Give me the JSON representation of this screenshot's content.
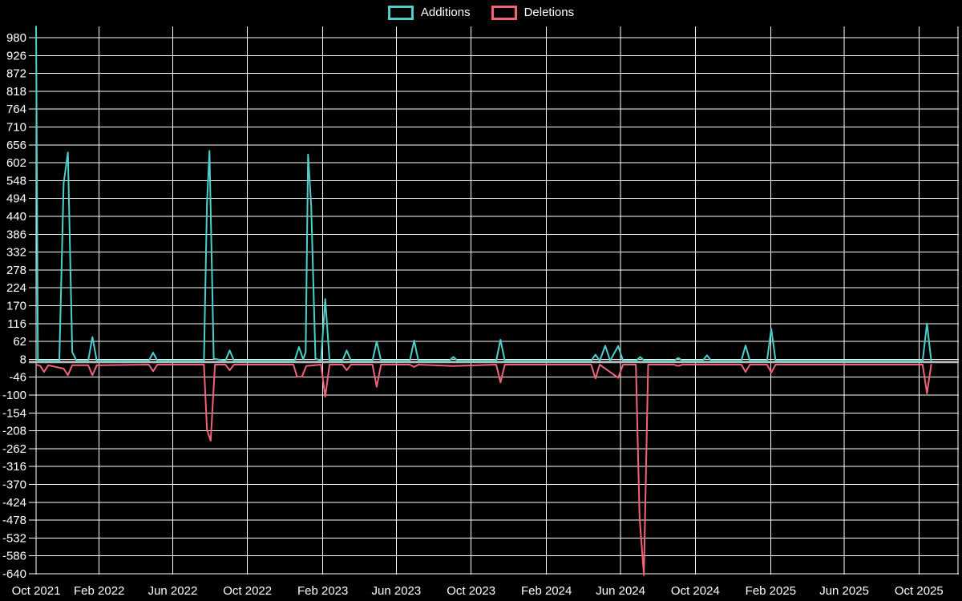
{
  "legend": {
    "items": [
      {
        "label": "Additions",
        "color": "#4dd0cb"
      },
      {
        "label": "Deletions",
        "color": "#f06378"
      }
    ]
  },
  "chart_data": {
    "type": "line",
    "title": "",
    "legend_position": "top",
    "grid": true,
    "background": "#000000",
    "gridline_color": "#ffffff",
    "zero_line_color": "#b0b8b8",
    "text_color": "#ffffff",
    "x_axis": {
      "start": "2021-10-21",
      "end": "2025-12-05",
      "ticks": [
        {
          "date": "2021-10-21",
          "label": "Oct 2021"
        },
        {
          "date": "2022-02-01",
          "label": "Feb 2022"
        },
        {
          "date": "2022-06-01",
          "label": "Jun 2022"
        },
        {
          "date": "2022-10-01",
          "label": "Oct 2022"
        },
        {
          "date": "2023-02-01",
          "label": "Feb 2023"
        },
        {
          "date": "2023-06-01",
          "label": "Jun 2023"
        },
        {
          "date": "2023-10-01",
          "label": "Oct 2023"
        },
        {
          "date": "2024-02-01",
          "label": "Feb 2024"
        },
        {
          "date": "2024-06-01",
          "label": "Jun 2024"
        },
        {
          "date": "2024-10-01",
          "label": "Oct 2024"
        },
        {
          "date": "2025-02-01",
          "label": "Feb 2025"
        },
        {
          "date": "2025-06-01",
          "label": "Jun 2025"
        },
        {
          "date": "2025-10-01",
          "label": "Oct 2025"
        }
      ]
    },
    "y_axis": {
      "min": -644,
      "max": 1014,
      "ticks": [
        980,
        926,
        872,
        818,
        764,
        710,
        656,
        602,
        548,
        494,
        440,
        386,
        332,
        278,
        224,
        170,
        116,
        62,
        8,
        -46,
        -100,
        -154,
        -208,
        -262,
        -316,
        -370,
        -424,
        -478,
        -532,
        -586,
        -640
      ]
    },
    "series": [
      {
        "name": "Additions",
        "color": "#4dd0cb",
        "points": [
          [
            "2021-10-21",
            1014
          ],
          [
            "2021-10-24",
            4
          ],
          [
            "2021-11-28",
            4
          ],
          [
            "2021-12-05",
            540
          ],
          [
            "2021-12-12",
            633
          ],
          [
            "2021-12-19",
            30
          ],
          [
            "2021-12-26",
            4
          ],
          [
            "2022-01-14",
            4
          ],
          [
            "2022-01-21",
            75
          ],
          [
            "2022-01-28",
            4
          ],
          [
            "2022-04-23",
            4
          ],
          [
            "2022-04-30",
            28
          ],
          [
            "2022-05-07",
            4
          ],
          [
            "2022-07-22",
            4
          ],
          [
            "2022-07-27",
            480
          ],
          [
            "2022-07-31",
            638
          ],
          [
            "2022-08-07",
            10
          ],
          [
            "2022-08-26",
            4
          ],
          [
            "2022-09-02",
            35
          ],
          [
            "2022-09-09",
            4
          ],
          [
            "2022-12-17",
            4
          ],
          [
            "2022-12-24",
            45
          ],
          [
            "2022-12-31",
            8
          ],
          [
            "2023-01-04",
            30
          ],
          [
            "2023-01-08",
            627
          ],
          [
            "2023-01-13",
            471
          ],
          [
            "2023-01-20",
            10
          ],
          [
            "2023-01-29",
            4
          ],
          [
            "2023-02-05",
            190
          ],
          [
            "2023-02-12",
            4
          ],
          [
            "2023-03-05",
            4
          ],
          [
            "2023-03-12",
            35
          ],
          [
            "2023-03-19",
            4
          ],
          [
            "2023-04-23",
            4
          ],
          [
            "2023-04-30",
            62
          ],
          [
            "2023-05-07",
            4
          ],
          [
            "2023-06-23",
            4
          ],
          [
            "2023-06-30",
            65
          ],
          [
            "2023-07-07",
            4
          ],
          [
            "2023-08-26",
            4
          ],
          [
            "2023-09-02",
            15
          ],
          [
            "2023-09-09",
            4
          ],
          [
            "2023-11-11",
            4
          ],
          [
            "2023-11-18",
            67
          ],
          [
            "2023-11-25",
            4
          ],
          [
            "2024-04-14",
            4
          ],
          [
            "2024-04-21",
            22
          ],
          [
            "2024-04-28",
            4
          ],
          [
            "2024-05-07",
            49
          ],
          [
            "2024-05-15",
            4
          ],
          [
            "2024-05-28",
            48
          ],
          [
            "2024-06-05",
            4
          ],
          [
            "2024-06-26",
            4
          ],
          [
            "2024-07-03",
            15
          ],
          [
            "2024-07-10",
            4
          ],
          [
            "2024-08-27",
            4
          ],
          [
            "2024-09-03",
            12
          ],
          [
            "2024-09-10",
            4
          ],
          [
            "2024-10-13",
            4
          ],
          [
            "2024-10-20",
            20
          ],
          [
            "2024-10-27",
            4
          ],
          [
            "2024-12-15",
            4
          ],
          [
            "2024-12-22",
            50
          ],
          [
            "2024-12-29",
            4
          ],
          [
            "2025-01-26",
            4
          ],
          [
            "2025-02-02",
            100
          ],
          [
            "2025-02-09",
            4
          ],
          [
            "2025-10-07",
            4
          ],
          [
            "2025-10-14",
            116
          ],
          [
            "2025-10-21",
            4
          ]
        ]
      },
      {
        "name": "Deletions",
        "color": "#f06378",
        "points": [
          [
            "2021-10-21",
            -8
          ],
          [
            "2021-10-28",
            -12
          ],
          [
            "2021-11-03",
            -30
          ],
          [
            "2021-11-10",
            -10
          ],
          [
            "2021-12-05",
            -20
          ],
          [
            "2021-12-12",
            -40
          ],
          [
            "2021-12-19",
            -10
          ],
          [
            "2022-01-14",
            -10
          ],
          [
            "2022-01-21",
            -40
          ],
          [
            "2022-01-28",
            -10
          ],
          [
            "2022-04-23",
            -8
          ],
          [
            "2022-04-30",
            -28
          ],
          [
            "2022-05-07",
            -8
          ],
          [
            "2022-07-22",
            -8
          ],
          [
            "2022-07-27",
            -205
          ],
          [
            "2022-08-02",
            -238
          ],
          [
            "2022-08-09",
            -8
          ],
          [
            "2022-08-26",
            -8
          ],
          [
            "2022-09-02",
            -25
          ],
          [
            "2022-09-09",
            -8
          ],
          [
            "2022-12-15",
            -8
          ],
          [
            "2022-12-21",
            -45
          ],
          [
            "2022-12-29",
            -45
          ],
          [
            "2023-01-05",
            -12
          ],
          [
            "2023-01-29",
            -8
          ],
          [
            "2023-02-05",
            -105
          ],
          [
            "2023-02-12",
            -8
          ],
          [
            "2023-03-05",
            -8
          ],
          [
            "2023-03-12",
            -25
          ],
          [
            "2023-03-19",
            -8
          ],
          [
            "2023-04-23",
            -8
          ],
          [
            "2023-04-30",
            -75
          ],
          [
            "2023-05-07",
            -8
          ],
          [
            "2023-06-23",
            -8
          ],
          [
            "2023-06-30",
            -15
          ],
          [
            "2023-07-07",
            -8
          ],
          [
            "2023-09-02",
            -12
          ],
          [
            "2023-11-11",
            -8
          ],
          [
            "2023-11-18",
            -62
          ],
          [
            "2023-11-25",
            -8
          ],
          [
            "2024-04-14",
            -8
          ],
          [
            "2024-04-21",
            -50
          ],
          [
            "2024-04-28",
            -8
          ],
          [
            "2024-05-28",
            -48
          ],
          [
            "2024-06-05",
            -8
          ],
          [
            "2024-06-26",
            -8
          ],
          [
            "2024-07-02",
            -470
          ],
          [
            "2024-07-09",
            -644
          ],
          [
            "2024-07-16",
            -8
          ],
          [
            "2024-08-27",
            -8
          ],
          [
            "2024-09-03",
            -12
          ],
          [
            "2024-09-10",
            -8
          ],
          [
            "2024-12-15",
            -8
          ],
          [
            "2024-12-22",
            -30
          ],
          [
            "2024-12-29",
            -8
          ],
          [
            "2025-01-26",
            -8
          ],
          [
            "2025-02-02",
            -32
          ],
          [
            "2025-02-09",
            -8
          ],
          [
            "2025-10-07",
            -8
          ],
          [
            "2025-10-14",
            -95
          ],
          [
            "2025-10-21",
            -8
          ]
        ]
      }
    ]
  }
}
